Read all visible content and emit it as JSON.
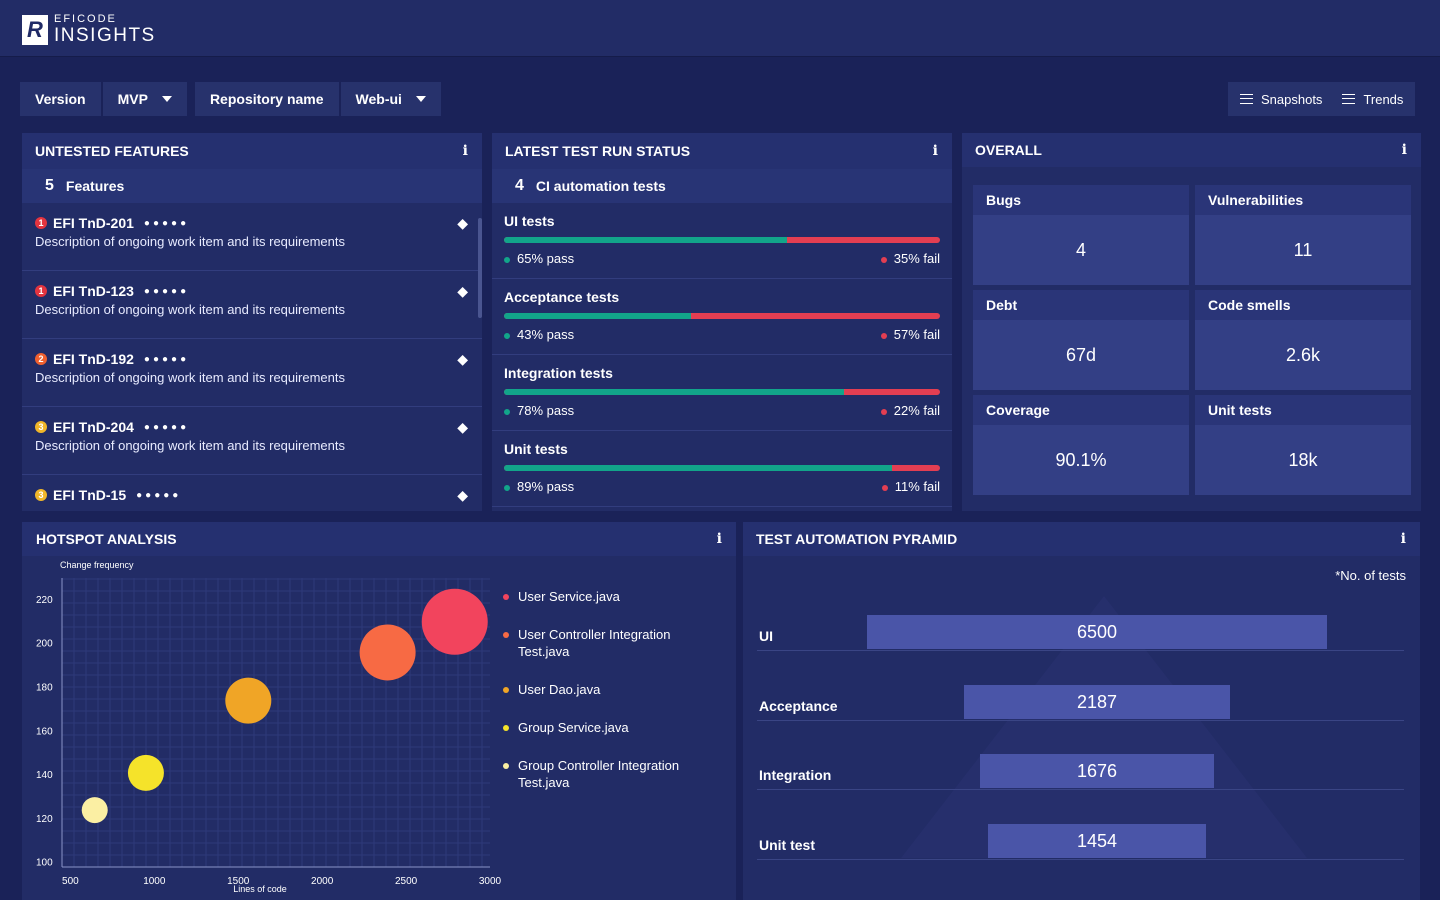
{
  "brand": {
    "top": "EFICODE",
    "bottom": "INSIGHTS",
    "mark": "R"
  },
  "filters": {
    "version_label": "Version",
    "version_value": "MVP",
    "repo_label": "Repository name",
    "repo_value": "Web-ui"
  },
  "actions": {
    "snapshots": "Snapshots",
    "trends": "Trends"
  },
  "untested": {
    "title": "UNTESTED FEATURES",
    "count": "5",
    "count_label": "Features",
    "items": [
      {
        "id": "EFI TnD-201",
        "priority": "1",
        "color": "#e3343f",
        "desc": "Description of ongoing work item and its requirements"
      },
      {
        "id": "EFI TnD-123",
        "priority": "1",
        "color": "#e3343f",
        "desc": "Description of ongoing work item and its requirements"
      },
      {
        "id": "EFI TnD-192",
        "priority": "2",
        "color": "#f0602f",
        "desc": "Description of ongoing work item and its requirements"
      },
      {
        "id": "EFI TnD-204",
        "priority": "3",
        "color": "#f0b62a",
        "desc": "Description of ongoing work item and its requirements"
      },
      {
        "id": "EFI TnD-15",
        "priority": "3",
        "color": "#f0b62a",
        "desc": ""
      }
    ]
  },
  "testrun": {
    "title": "LATEST TEST RUN STATUS",
    "count": "4",
    "count_label": "CI automation tests",
    "tests": [
      {
        "name": "UI tests",
        "pass_pct": 65,
        "pass": "65% pass",
        "fail": "35% fail"
      },
      {
        "name": "Acceptance tests",
        "pass_pct": 43,
        "pass": "43% pass",
        "fail": "57% fail"
      },
      {
        "name": "Integration tests",
        "pass_pct": 78,
        "pass": "78% pass",
        "fail": "22% fail"
      },
      {
        "name": "Unit tests",
        "pass_pct": 89,
        "pass": "89% pass",
        "fail": "11% fail"
      }
    ]
  },
  "overall": {
    "title": "OVERALL",
    "tiles": [
      {
        "label": "Bugs",
        "value": "4"
      },
      {
        "label": "Vulnerabilities",
        "value": "11"
      },
      {
        "label": "Debt",
        "value": "67d"
      },
      {
        "label": "Code smells",
        "value": "2.6k"
      },
      {
        "label": "Coverage",
        "value": "90.1%"
      },
      {
        "label": "Unit tests",
        "value": "18k"
      }
    ]
  },
  "hotspot": {
    "title": "HOTSPOT ANALYSIS",
    "legend": [
      {
        "label": "User Service.java",
        "color": "#f2445d"
      },
      {
        "label": "User Controller Integration Test.java",
        "color": "#f76a44"
      },
      {
        "label": "User Dao.java",
        "color": "#f0a526"
      },
      {
        "label": "Group Service.java",
        "color": "#f5e32a"
      },
      {
        "label": "Group Controller Integration Test.java",
        "color": "#fbefa3"
      }
    ]
  },
  "chart_data": {
    "type": "scatter",
    "title": "",
    "xlabel": "Lines of code",
    "ylabel": "Change frequency",
    "xlim": [
      450,
      3000
    ],
    "ylim": [
      98,
      230
    ],
    "xticks": [
      500,
      1000,
      1500,
      2000,
      2500,
      3000
    ],
    "yticks": [
      100,
      120,
      140,
      160,
      180,
      200,
      220
    ],
    "points": [
      {
        "name": "User Service.java",
        "x": 2790,
        "y": 210,
        "size": 33,
        "color": "#f2445d"
      },
      {
        "name": "User Controller Integration Test.java",
        "x": 2390,
        "y": 196,
        "size": 28,
        "color": "#f76a44"
      },
      {
        "name": "User Dao.java",
        "x": 1560,
        "y": 174,
        "size": 23,
        "color": "#f0a526"
      },
      {
        "name": "Group Service.java",
        "x": 950,
        "y": 141,
        "size": 18,
        "color": "#f5e32a"
      },
      {
        "name": "Group Controller Integration Test.java",
        "x": 645,
        "y": 124,
        "size": 13,
        "color": "#fbefa3"
      }
    ]
  },
  "pyramid": {
    "title": "TEST AUTOMATION PYRAMID",
    "note": "*No. of  tests",
    "rows": [
      {
        "label": "UI",
        "value": 6500,
        "text": "6500"
      },
      {
        "label": "Acceptance",
        "value": 2187,
        "text": "2187"
      },
      {
        "label": "Integration",
        "value": 1676,
        "text": "1676"
      },
      {
        "label": "Unit test",
        "value": 1454,
        "text": "1454"
      }
    ]
  }
}
